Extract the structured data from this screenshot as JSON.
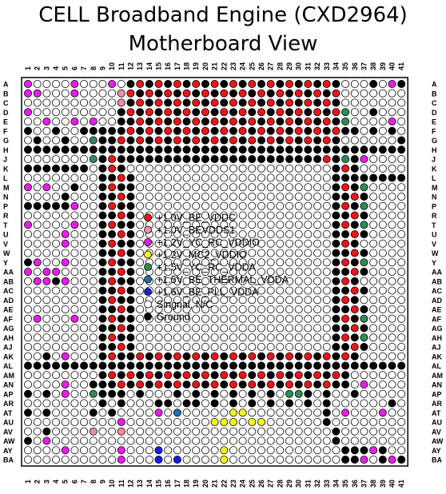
{
  "title_line1": "CELL Broadband Engine (CXD2964)",
  "title_line2": "Motherboard View",
  "columns": [
    "1",
    "2",
    "3",
    "4",
    "5",
    "6",
    "7",
    "8",
    "9",
    "10",
    "11",
    "12",
    "13",
    "14",
    "15",
    "16",
    "17",
    "18",
    "19",
    "20",
    "21",
    "22",
    "23",
    "24",
    "25",
    "26",
    "27",
    "28",
    "29",
    "30",
    "31",
    "32",
    "33",
    "34",
    "35",
    "36",
    "37",
    "38",
    "39",
    "40",
    "41"
  ],
  "rows": [
    "A",
    "B",
    "C",
    "D",
    "E",
    "F",
    "G",
    "H",
    "J",
    "K",
    "L",
    "M",
    "N",
    "P",
    "R",
    "T",
    "U",
    "V",
    "W",
    "Y",
    "AA",
    "AB",
    "AC",
    "AD",
    "AE",
    "AF",
    "AG",
    "AH",
    "AJ",
    "AK",
    "AL",
    "AM",
    "AN",
    "AP",
    "AR",
    "AT",
    "AU",
    "AV",
    "AW",
    "AY",
    "BA"
  ],
  "legend": [
    {
      "key": "R",
      "label": "+1.0V_BE_VDDC",
      "color": "#e8161b"
    },
    {
      "key": "P",
      "label": "+1.0V_BEVDDS1",
      "color": "#f28ca5"
    },
    {
      "key": "M",
      "label": "+1.2V_YC_RC_VDDIO",
      "color": "#e81ee8"
    },
    {
      "key": "Y",
      "label": "+1.2V_MC2_VDDIO",
      "color": "#f5f51a"
    },
    {
      "key": "G",
      "label": "+1.5V_YC_RC_VDDA",
      "color": "#2e8b57"
    },
    {
      "key": "T",
      "label": "+1.5V_BE_THERMAL_VDDA",
      "color": "#1f6fa8"
    },
    {
      "key": "B",
      "label": "+1.6V_BE_PLL_VDDA",
      "color": "#1a1ae8"
    },
    {
      "key": "O",
      "label": "Singnal, N/C",
      "color": "#ffffff"
    },
    {
      "key": "K",
      "label": "Ground",
      "color": "#000000"
    }
  ],
  "ball_map": [
    "MOOOOMOOOMOKRKRKRKRKRKRKRKRKRKRKRKOOOKOMK",
    "MMOOOMOOOOPRKRKRKRKRKRKRKRKRKRKRKROOOOOOO",
    "OOOOOOOOOOPKRKRKRKRKRKRKRKRKRKRKRKOOOOOOO",
    "MOOOOOOOOOKRKRKRKRKRKRKRKRKRKRKRKRGOOKOOO",
    "OOMOOMOMOOKKRKRKRKRKRKRKRKRKRKRKRKGOOOOMO",
    "KOOKOOKKKKKRKRKRKRKRKRKRKRKRKRKRKRKKOKOKO",
    "OKOOKOOGKKRKRKRKRKRKRKRKRKRKRKRKRKOOOOOOK",
    "KKKKKKKKKKKKKKKKKKKKKKKKKKKKKKKKKKKKKKKKK",
    "OOOOOOOGKRKKKKKKKKKKKKKKKKKKKKKKRKGKMOOOO",
    "KKKKKKKOKRKOOOOOOOOOOOOOOOOOOOOOOKRKOOOOO",
    "OOOOOOOOKKRKOOOOOOOOOOOOOOOOOOOOOKKKKKKKK",
    "MOMOOKOOKRKKOOOOOOOOOOOOOOOOOOOOOKRKGOOOO",
    "OOOOKOOOKKRKOOOOOOOOOOOOOOOOOOOOOKKRKOOOO",
    "KKKKKMOOKRKKOOOOOOOOOOOOOOOOOOOOOKRKGOOOO",
    "OOOOOOOOKKRKOOOOOOOOOOOOOOOOOOOOOKKRKOOOO",
    "MOOOOMOOKRKKOOOOOOOOOOOOOOOOOOOOOKRKGOOOO",
    "OOOOMOOOKKRKOOOOOOOOOOOOOOOOOOOOOKKRKOOOO",
    "OOOOMOOOKRKKOOOOOOOOOOOOOOOOOOOOOKRKOOOOO",
    "OOOOOOOOKKRKOOOOOOOOOOOOOOOOOOOOOKKRKOOOO",
    "KMOOMOOOKRKKOOOOOOOOOOOOOOOOOOOOOKRKGOOOO",
    "MOMMOOOOKKRKOOOOOOOOOOOOOOOOOOOOOKKRKOOOO",
    "OMMKMOOOKRKKOOOOOOOOOOOOOOOOOOOOOKRKOOOOO",
    "OOOOOOOOKKRKOOOOOOOOOOOOOOOOOOOOOKKRKOOOO",
    "OOOOOOOOKRKKOOOOOOOOOOOOOOOOOOOOOKRKOOOOO",
    "OOOOOOOOKKRKOOOOOOOOOOOOOOOOOOOOOKKRKOOOO",
    "OMOOOMOOKRKKOOOOOOOOOOOOOOOOOOOOOKRKGOOOO",
    "OOOOOOOOKKRKOOOOOOOOOOOOOOOOOOOOOKKRKOOOO",
    "OOOOOOOOKRKKOOOOOOOOOOOOOOOOOOOOOKRKGOOOO",
    "OOOOOOOOKKRKOOOOOOOOOOOOOOOOOOOOOKKRKOOOO",
    "OOKOMOOOKRKKRKRKRKRKRKRKRKRKRKRKRKRKOOOOO",
    "KKKKKKKKKKKKKKKKKKKKKKKKKKKKKKKKKKKKKKKKK",
    "OOOOOOOOKRKRKRKRKRKRKRKRKRKRKRKRKRKOOOOOO",
    "OOOOMOOKKKRKRKRKRKRKRKRKRKRKRKRKRKKOMOOOO",
    "KOKOMOOGKKKOKOOOKOKOKOKOKOKOGGKOKOOKOOOOO",
    "OOOOOOOOKOKOOOKKOKKOKOKOKOKOKOKOKOOOOOOKO",
    "KOKOOOOKOKOOOOMOTOOOOOYYOOOOOOOOKOMOOOMOO",
    "OOOOOOOOOOMOOOOOOOOOYYYOYYOOOOOOKOOOOOOOO",
    "OOKOOOOPOOPOOOOOOOOOOOOOOOOOOOOOOKOOOOOOO",
    "KOMOOOOOOOOOOOOOOOOOOOOOOOOOOOOOOKOOOOOOO",
    "OOOOMOOOOOMOOOBOOOOOOYOOOOOOOOOOOOKKKMKOO",
    "OOOOOOOOOOMOOOBOBOOOOYOOOOOOOOOOOOKKMOKMK"
  ]
}
